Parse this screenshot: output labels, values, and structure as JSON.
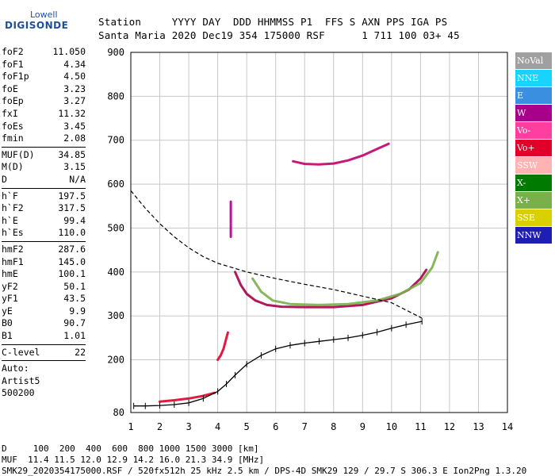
{
  "logo": {
    "line1": "Lowell",
    "line2": "DIGISONDE"
  },
  "header": {
    "line1": "Station     YYYY DAY  DDD HHMMSS P1  FFS S AXN PPS IGA PS",
    "line2": "Santa Maria 2020 Dec19 354 175000 RSF      1 711 100 03+ 45"
  },
  "params": [
    {
      "label": "foF2",
      "value": "11.050"
    },
    {
      "label": "foF1",
      "value": "4.34"
    },
    {
      "label": "foF1p",
      "value": "4.50"
    },
    {
      "label": "foE",
      "value": "3.23"
    },
    {
      "label": "foEp",
      "value": "3.27"
    },
    {
      "label": "fxI",
      "value": "11.32"
    },
    {
      "label": "foEs",
      "value": "3.45"
    },
    {
      "label": "fmin",
      "value": "2.08"
    },
    {
      "label": "MUF(D)",
      "value": "34.85"
    },
    {
      "label": "M(D)",
      "value": "3.15"
    },
    {
      "label": "D",
      "value": "N/A"
    },
    {
      "label": "h`F",
      "value": "197.5"
    },
    {
      "label": "h`F2",
      "value": "317.5"
    },
    {
      "label": "h`E",
      "value": "99.4"
    },
    {
      "label": "h`Es",
      "value": "110.0"
    },
    {
      "label": "hmF2",
      "value": "287.6"
    },
    {
      "label": "hmF1",
      "value": "145.0"
    },
    {
      "label": "hmE",
      "value": "100.1"
    },
    {
      "label": "yF2",
      "value": "50.1"
    },
    {
      "label": "yF1",
      "value": "43.5"
    },
    {
      "label": "yE",
      "value": "9.9"
    },
    {
      "label": "B0",
      "value": "90.7"
    },
    {
      "label": "B1",
      "value": "1.01"
    },
    {
      "label": "C-level",
      "value": "22"
    }
  ],
  "auto": {
    "line1": "Auto:",
    "line2": "Artist5",
    "line3": "500200"
  },
  "legend": [
    {
      "label": "NoVal",
      "color": "#a0a0a0"
    },
    {
      "label": "NNE",
      "color": "#17d4ff"
    },
    {
      "label": "E",
      "color": "#3a8fe0"
    },
    {
      "label": "W",
      "color": "#a8008a"
    },
    {
      "label": "Vo-",
      "color": "#ff3fa0"
    },
    {
      "label": "Vo+",
      "color": "#e0002a"
    },
    {
      "label": "SSW",
      "color": "#ffb3b3"
    },
    {
      "label": "X-",
      "color": "#007a00"
    },
    {
      "label": "X+",
      "color": "#7ab04a"
    },
    {
      "label": "SSE",
      "color": "#d8d000"
    },
    {
      "label": "NNW",
      "color": "#1e1eb4"
    }
  ],
  "footer": {
    "line1": "D     100  200  400  600  800 1000 1500 3000 [km]",
    "line2": "MUF  11.4 11.5 12.0 12.9 14.2 16.0 21.3 34.9 [MHz]",
    "line3": "SMK29_2020354175000.RSF / 520fx512h 25 kHz 2.5 km / DPS-4D SMK29 129 / 29.7 S 306.3 E Ion2Png 1.3.20"
  },
  "chart_data": {
    "type": "scatter",
    "title": "",
    "xlabel": "",
    "ylabel": "",
    "xlim": [
      1,
      14
    ],
    "ylim": [
      80,
      900
    ],
    "xticks": [
      1,
      2,
      3,
      4,
      5,
      6,
      7,
      8,
      9,
      10,
      11,
      12,
      13,
      14
    ],
    "yticks": [
      80,
      200,
      300,
      400,
      500,
      600,
      700,
      800,
      900
    ],
    "grid": true,
    "series": [
      {
        "name": "",
        "kind": "trace",
        "color": "#a8004a",
        "points": [
          [
            4.6,
            400
          ],
          [
            4.8,
            370
          ],
          [
            5.0,
            350
          ],
          [
            5.3,
            335
          ],
          [
            5.7,
            325
          ],
          [
            6.2,
            321
          ],
          [
            7.0,
            320
          ],
          [
            8.0,
            320
          ],
          [
            9.0,
            325
          ],
          [
            10.0,
            340
          ],
          [
            10.6,
            360
          ],
          [
            11.0,
            385
          ],
          [
            11.2,
            405
          ]
        ]
      },
      {
        "name": "",
        "kind": "trace",
        "color": "#7ab04a",
        "points": [
          [
            5.2,
            385
          ],
          [
            5.5,
            355
          ],
          [
            5.9,
            335
          ],
          [
            6.5,
            327
          ],
          [
            7.5,
            325
          ],
          [
            8.5,
            327
          ],
          [
            9.5,
            335
          ],
          [
            10.3,
            350
          ],
          [
            11.0,
            375
          ],
          [
            11.4,
            410
          ],
          [
            11.6,
            445
          ]
        ]
      },
      {
        "name": "",
        "kind": "trace",
        "color": "#c0006a",
        "points": [
          [
            6.6,
            652
          ],
          [
            7.0,
            646
          ],
          [
            7.5,
            645
          ],
          [
            8.0,
            647
          ],
          [
            8.5,
            654
          ],
          [
            9.0,
            665
          ],
          [
            9.5,
            680
          ],
          [
            9.9,
            692
          ]
        ]
      },
      {
        "name": "",
        "kind": "trace",
        "color": "#e0002a",
        "points": [
          [
            2.0,
            105
          ],
          [
            2.5,
            108
          ],
          [
            3.0,
            112
          ],
          [
            3.5,
            118
          ],
          [
            3.9,
            125
          ]
        ]
      },
      {
        "name": "",
        "kind": "trace",
        "color": "#e0002a",
        "points": [
          [
            4.0,
            200
          ],
          [
            4.1,
            210
          ],
          [
            4.2,
            225
          ],
          [
            4.3,
            250
          ],
          [
            4.35,
            262
          ]
        ]
      },
      {
        "name": "",
        "kind": "trace",
        "color": "#a8008a",
        "points": [
          [
            4.45,
            480
          ],
          [
            4.45,
            500
          ],
          [
            4.45,
            530
          ],
          [
            4.45,
            560
          ]
        ]
      },
      {
        "name": "",
        "kind": "profile",
        "color": "#000000",
        "points": [
          [
            1.1,
            95
          ],
          [
            1.5,
            95
          ],
          [
            2.0,
            96
          ],
          [
            2.5,
            98
          ],
          [
            3.0,
            102
          ],
          [
            3.5,
            112
          ],
          [
            4.0,
            128
          ],
          [
            4.3,
            145
          ],
          [
            4.6,
            165
          ],
          [
            5.0,
            190
          ],
          [
            5.5,
            210
          ],
          [
            6.0,
            225
          ],
          [
            6.5,
            233
          ],
          [
            7.0,
            238
          ],
          [
            7.5,
            242
          ],
          [
            8.0,
            246
          ],
          [
            8.5,
            250
          ],
          [
            9.0,
            256
          ],
          [
            9.5,
            263
          ],
          [
            10.0,
            272
          ],
          [
            10.5,
            280
          ],
          [
            11.05,
            287.6
          ]
        ]
      },
      {
        "name": "",
        "kind": "dashed",
        "color": "#000000",
        "points": [
          [
            1.0,
            585
          ],
          [
            1.5,
            545
          ],
          [
            2.0,
            510
          ],
          [
            2.5,
            480
          ],
          [
            3.0,
            455
          ],
          [
            3.5,
            435
          ],
          [
            4.0,
            420
          ],
          [
            5.0,
            400
          ],
          [
            6.0,
            385
          ],
          [
            7.0,
            372
          ],
          [
            8.0,
            360
          ],
          [
            9.0,
            345
          ],
          [
            10.0,
            330
          ],
          [
            10.6,
            310
          ],
          [
            11.05,
            295
          ]
        ]
      }
    ]
  }
}
